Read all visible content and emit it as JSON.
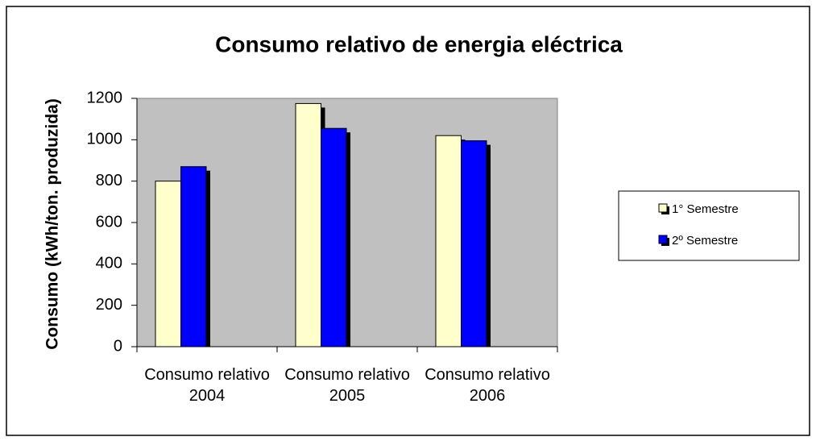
{
  "chart_data": {
    "type": "bar",
    "title": "Consumo relativo de energia eléctrica",
    "y_label": "Consumo (kWh/ton. produzida)",
    "categories": [
      "Consumo relativo 2004",
      "Consumo relativo 2005",
      "Consumo relativo 2006"
    ],
    "series": [
      {
        "name": "1° Semestre",
        "color": "#ffffcc",
        "values": [
          800,
          1175,
          1020
        ]
      },
      {
        "name": "2º Semestre",
        "color": "#0000ff",
        "values": [
          870,
          1055,
          995
        ]
      }
    ],
    "ylim": [
      0,
      1200
    ],
    "yticks": [
      0,
      200,
      400,
      600,
      800,
      1000,
      1200
    ],
    "legend": "right",
    "plot_background": "#c0c0c0"
  }
}
